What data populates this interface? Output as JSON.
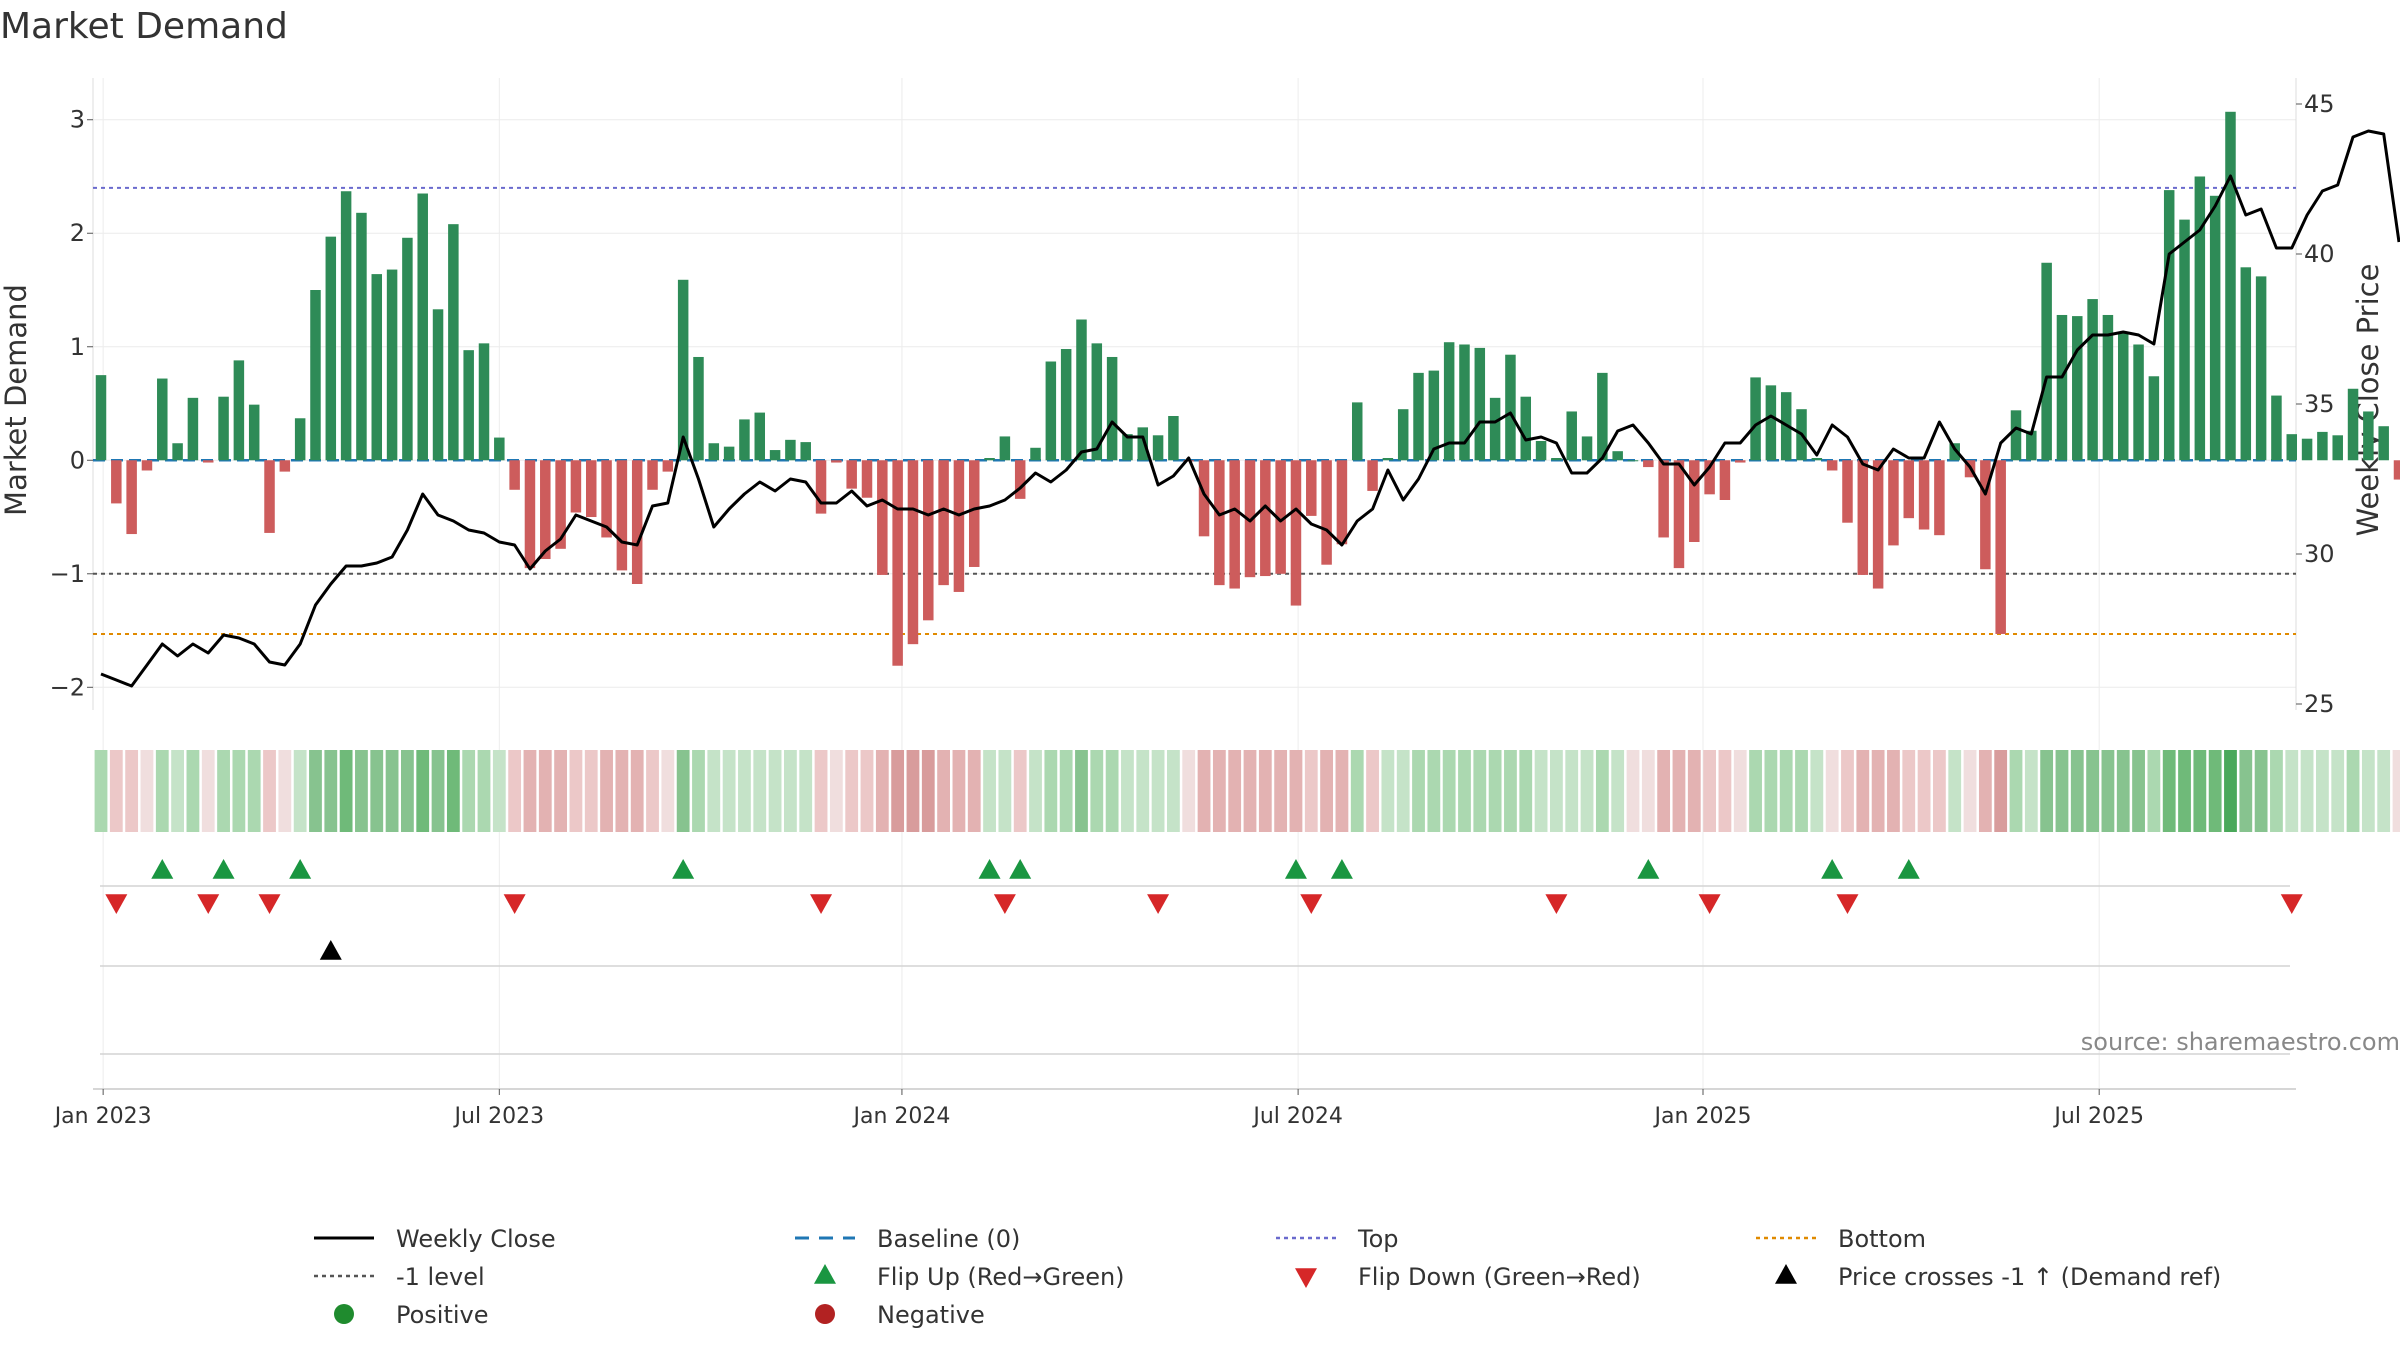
{
  "chart_data": {
    "type": "bar",
    "title": "Market Demand",
    "ylabel": "Market Demand",
    "y2label": "Weekly Close Price",
    "ylim": [
      -2.2,
      3.35
    ],
    "y2lim": [
      24.8,
      45.8
    ],
    "yticks": [
      "−2",
      "−1",
      "0",
      "1",
      "2",
      "3"
    ],
    "y2ticks": [
      "25",
      "30",
      "35",
      "40",
      "45"
    ],
    "date_ticks": [
      "Jan 2023",
      "Jul 2023",
      "Jan 2024",
      "Jul 2024",
      "Jan 2025",
      "Jul 2025"
    ],
    "reference_lines": {
      "top": 2.4,
      "minus_one": -1.0,
      "bottom": -1.53,
      "baseline": 0
    },
    "demand": [
      0.75,
      -0.38,
      -0.65,
      -0.09,
      0.72,
      0.15,
      0.55,
      -0.02,
      0.56,
      0.88,
      0.49,
      -0.64,
      -0.1,
      0.37,
      1.5,
      1.97,
      2.37,
      2.18,
      1.64,
      1.68,
      1.96,
      2.35,
      1.33,
      2.08,
      0.97,
      1.03,
      0.2,
      -0.26,
      -0.95,
      -0.87,
      -0.78,
      -0.46,
      -0.5,
      -0.68,
      -0.97,
      -1.09,
      -0.26,
      -0.1,
      1.59,
      0.91,
      0.15,
      0.12,
      0.36,
      0.42,
      0.09,
      0.18,
      0.16,
      -0.47,
      -0.02,
      -0.25,
      -0.33,
      -1.01,
      -1.81,
      -1.62,
      -1.41,
      -1.1,
      -1.16,
      -0.94,
      0.02,
      0.21,
      -0.34,
      0.11,
      0.87,
      0.98,
      1.24,
      1.03,
      0.91,
      0.23,
      0.29,
      0.22,
      0.39,
      -0.01,
      -0.67,
      -1.1,
      -1.13,
      -1.03,
      -1.02,
      -1.0,
      -1.28,
      -0.49,
      -0.92,
      -0.74,
      0.51,
      -0.27,
      0.02,
      0.45,
      0.77,
      0.79,
      1.04,
      1.02,
      0.99,
      0.55,
      0.93,
      0.56,
      0.17,
      0.02,
      0.43,
      0.21,
      0.77,
      0.08,
      0.0,
      -0.06,
      -0.68,
      -0.95,
      -0.72,
      -0.3,
      -0.35,
      -0.02,
      0.73,
      0.66,
      0.6,
      0.45,
      0.02,
      -0.09,
      -0.55,
      -1.01,
      -1.13,
      -0.75,
      -0.51,
      -0.61,
      -0.66,
      0.15,
      -0.15,
      -0.96,
      -1.53,
      0.44,
      0.26,
      1.74,
      1.28,
      1.27,
      1.42,
      1.28,
      1.12,
      1.02,
      0.74,
      2.38,
      2.12,
      2.5,
      2.33,
      3.07,
      1.7,
      1.62,
      0.57,
      0.23,
      0.19,
      0.25,
      0.22,
      0.63,
      0.43,
      0.3,
      -0.17
    ],
    "weekly_close": [
      26.0,
      25.8,
      25.6,
      26.3,
      27.0,
      26.6,
      27.0,
      26.7,
      27.3,
      27.2,
      27.0,
      26.4,
      26.3,
      27.0,
      28.3,
      29.0,
      29.6,
      29.6,
      29.7,
      29.9,
      30.8,
      32.0,
      31.3,
      31.1,
      30.8,
      30.7,
      30.4,
      30.3,
      29.5,
      30.1,
      30.5,
      31.3,
      31.1,
      30.9,
      30.4,
      30.3,
      31.6,
      31.7,
      33.9,
      32.5,
      30.9,
      31.5,
      32.0,
      32.4,
      32.1,
      32.5,
      32.4,
      31.7,
      31.7,
      32.1,
      31.6,
      31.8,
      31.5,
      31.5,
      31.3,
      31.5,
      31.3,
      31.5,
      31.6,
      31.8,
      32.2,
      32.7,
      32.4,
      32.8,
      33.4,
      33.5,
      34.4,
      33.9,
      33.9,
      32.3,
      32.6,
      33.2,
      32.0,
      31.3,
      31.5,
      31.1,
      31.6,
      31.1,
      31.5,
      31.0,
      30.8,
      30.3,
      31.1,
      31.5,
      32.8,
      31.8,
      32.5,
      33.5,
      33.7,
      33.7,
      34.4,
      34.4,
      34.7,
      33.8,
      33.9,
      33.7,
      32.7,
      32.7,
      33.2,
      34.1,
      34.3,
      33.7,
      33.0,
      33.0,
      32.3,
      32.9,
      33.7,
      33.7,
      34.3,
      34.6,
      34.3,
      34.0,
      33.3,
      34.3,
      33.9,
      33.0,
      32.8,
      33.5,
      33.2,
      33.2,
      34.4,
      33.5,
      32.9,
      32.0,
      33.7,
      34.2,
      34.0,
      35.9,
      35.9,
      36.8,
      37.3,
      37.3,
      37.4,
      37.3,
      37.0,
      40.0,
      40.4,
      40.8,
      41.6,
      42.6,
      41.3,
      41.5,
      40.2,
      40.2,
      41.3,
      42.1,
      42.3,
      43.9,
      44.1,
      44.0,
      40.4
    ],
    "intensity_colors": [
      "#abd8b0",
      "#ecc8c8",
      "#ecc8c8",
      "#f0dede",
      "#abd8b0",
      "#c5e3c8",
      "#abd8b0",
      "#f0dede",
      "#abd8b0",
      "#abd8b0",
      "#abd8b0",
      "#ecc8c8",
      "#f0dede",
      "#c5e3c8",
      "#87c38f",
      "#87c38f",
      "#6fba79",
      "#87c38f",
      "#87c38f",
      "#87c38f",
      "#87c38f",
      "#6fba79",
      "#87c38f",
      "#6fba79",
      "#abd8b0",
      "#abd8b0",
      "#c5e3c8",
      "#ecc8c8",
      "#e3b2b2",
      "#e3b2b2",
      "#e3b2b2",
      "#ecc8c8",
      "#ecc8c8",
      "#e3b2b2",
      "#e3b2b2",
      "#e3b2b2",
      "#ecc8c8",
      "#f0dede",
      "#87c38f",
      "#abd8b0",
      "#c5e3c8",
      "#c5e3c8",
      "#c5e3c8",
      "#c5e3c8",
      "#c5e3c8",
      "#c5e3c8",
      "#c5e3c8",
      "#ecc8c8",
      "#f0dede",
      "#ecc8c8",
      "#ecc8c8",
      "#e3b2b2",
      "#d89c9c",
      "#d89c9c",
      "#d89c9c",
      "#e3b2b2",
      "#e3b2b2",
      "#e3b2b2",
      "#c5e3c8",
      "#c5e3c8",
      "#ecc8c8",
      "#c5e3c8",
      "#abd8b0",
      "#abd8b0",
      "#87c38f",
      "#abd8b0",
      "#abd8b0",
      "#c5e3c8",
      "#c5e3c8",
      "#c5e3c8",
      "#c5e3c8",
      "#f0dede",
      "#e3b2b2",
      "#e3b2b2",
      "#e3b2b2",
      "#e3b2b2",
      "#e3b2b2",
      "#e3b2b2",
      "#e3b2b2",
      "#ecc8c8",
      "#e3b2b2",
      "#e3b2b2",
      "#abd8b0",
      "#ecc8c8",
      "#c5e3c8",
      "#c5e3c8",
      "#abd8b0",
      "#abd8b0",
      "#abd8b0",
      "#abd8b0",
      "#abd8b0",
      "#abd8b0",
      "#abd8b0",
      "#abd8b0",
      "#c5e3c8",
      "#c5e3c8",
      "#c5e3c8",
      "#c5e3c8",
      "#abd8b0",
      "#c5e3c8",
      "#f0dede",
      "#f0dede",
      "#e3b2b2",
      "#e3b2b2",
      "#e3b2b2",
      "#ecc8c8",
      "#ecc8c8",
      "#f0dede",
      "#abd8b0",
      "#abd8b0",
      "#abd8b0",
      "#abd8b0",
      "#c5e3c8",
      "#f0dede",
      "#ecc8c8",
      "#e3b2b2",
      "#e3b2b2",
      "#e3b2b2",
      "#ecc8c8",
      "#ecc8c8",
      "#ecc8c8",
      "#c5e3c8",
      "#f0dede",
      "#e3b2b2",
      "#d89c9c",
      "#abd8b0",
      "#c5e3c8",
      "#87c38f",
      "#87c38f",
      "#87c38f",
      "#87c38f",
      "#87c38f",
      "#87c38f",
      "#87c38f",
      "#abd8b0",
      "#6fba79",
      "#6fba79",
      "#6fba79",
      "#6fba79",
      "#4aa85a",
      "#87c38f",
      "#87c38f",
      "#abd8b0",
      "#c5e3c8",
      "#c5e3c8",
      "#c5e3c8",
      "#c5e3c8",
      "#abd8b0",
      "#c5e3c8",
      "#c5e3c8",
      "#f0dede"
    ],
    "flip_up_weeks": [
      4,
      8,
      13,
      38,
      58,
      60,
      78,
      81,
      101,
      113,
      118
    ],
    "flip_down_weeks": [
      1,
      7,
      11,
      27,
      47,
      59,
      69,
      79,
      95,
      105,
      114,
      143
    ],
    "price_cross_weeks": [
      15
    ],
    "legend": [
      {
        "label": "Weekly Close",
        "symbol": "line-black"
      },
      {
        "label": "Baseline (0)",
        "symbol": "dash-blue"
      },
      {
        "label": "Top",
        "symbol": "dot-purple"
      },
      {
        "label": "Bottom",
        "symbol": "dot-orange"
      },
      {
        "label": "-1 level",
        "symbol": "dot-gray"
      },
      {
        "label": "Flip Up (Red→Green)",
        "symbol": "tri-up-green"
      },
      {
        "label": "Flip Down (Green→Red)",
        "symbol": "tri-down-red"
      },
      {
        "label": "Price crosses -1 ↑ (Demand ref)",
        "symbol": "tri-up-black"
      },
      {
        "label": "Positive",
        "symbol": "circle-green"
      },
      {
        "label": "Negative",
        "symbol": "circle-red"
      }
    ],
    "source": "source: sharemaestro.com"
  },
  "colors": {
    "positive_bar": "#2e8b57",
    "negative_bar": "#cd5c5c",
    "weekly_close": "#000000",
    "baseline": "#1f77b4",
    "top": "#6a6acd",
    "bottom": "#e08a00",
    "minus_one": "#555555",
    "flip_up": "#1a9641",
    "flip_down": "#d62728",
    "positive_dot": "#1f8b2e",
    "negative_dot": "#b22222"
  }
}
